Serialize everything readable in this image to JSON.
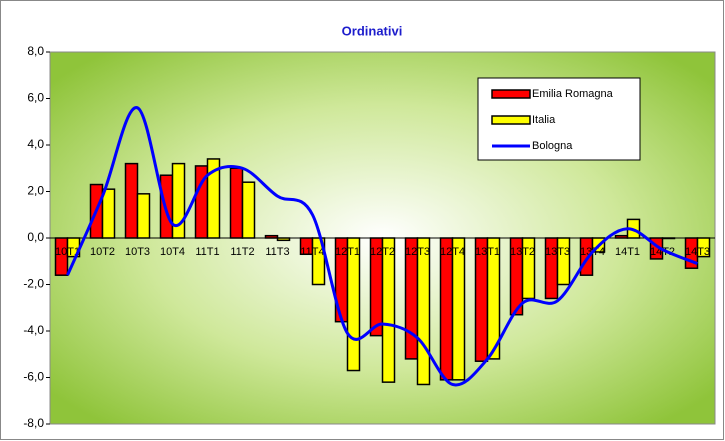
{
  "chart_data": {
    "type": "bar_line",
    "title": "Ordinativi",
    "categories": [
      "10T1",
      "10T2",
      "10T3",
      "10T4",
      "11T1",
      "11T2",
      "11T3",
      "11T4",
      "12T1",
      "12T2",
      "12T3",
      "12T4",
      "13T1",
      "13T2",
      "13T3",
      "13T4",
      "14T1",
      "14T2",
      "14T3"
    ],
    "series": [
      {
        "name": "Emilia Romagna",
        "color": "#ff0000",
        "kind": "bar",
        "values": [
          -1.6,
          2.3,
          3.2,
          2.7,
          3.1,
          3.0,
          0.1,
          -0.7,
          -3.6,
          -4.2,
          -5.2,
          -6.1,
          -5.3,
          -3.3,
          -2.6,
          -1.6,
          0.1,
          -0.9,
          -1.3
        ]
      },
      {
        "name": "Italia",
        "color": "#ffff00",
        "kind": "bar",
        "values": [
          -0.8,
          2.1,
          1.9,
          3.2,
          3.4,
          2.4,
          -0.1,
          -2.0,
          -5.7,
          -6.2,
          -6.3,
          -6.1,
          -5.2,
          -2.6,
          -2.0,
          -0.6,
          0.8,
          0.0,
          -0.8
        ]
      },
      {
        "name": "Bologna",
        "color": "#0000ff",
        "kind": "line",
        "values": [
          -1.6,
          1.8,
          5.6,
          0.6,
          2.7,
          3.0,
          1.8,
          1.0,
          -4.1,
          -3.7,
          -4.3,
          -6.3,
          -5.2,
          -2.8,
          -2.7,
          -0.6,
          0.4,
          -0.5,
          -1.1
        ]
      }
    ],
    "ylim": [
      -8,
      8
    ],
    "yticks": [
      {
        "value": -8,
        "label": "-8,0"
      },
      {
        "value": -6,
        "label": "-6,0"
      },
      {
        "value": -4,
        "label": "-4,0"
      },
      {
        "value": -2,
        "label": "-2,0"
      },
      {
        "value": 0,
        "label": "0,0"
      },
      {
        "value": 2,
        "label": "2,0"
      },
      {
        "value": 4,
        "label": "4,0"
      },
      {
        "value": 6,
        "label": "6,0"
      },
      {
        "value": 8,
        "label": "8,0"
      }
    ],
    "legend": "upper right"
  }
}
